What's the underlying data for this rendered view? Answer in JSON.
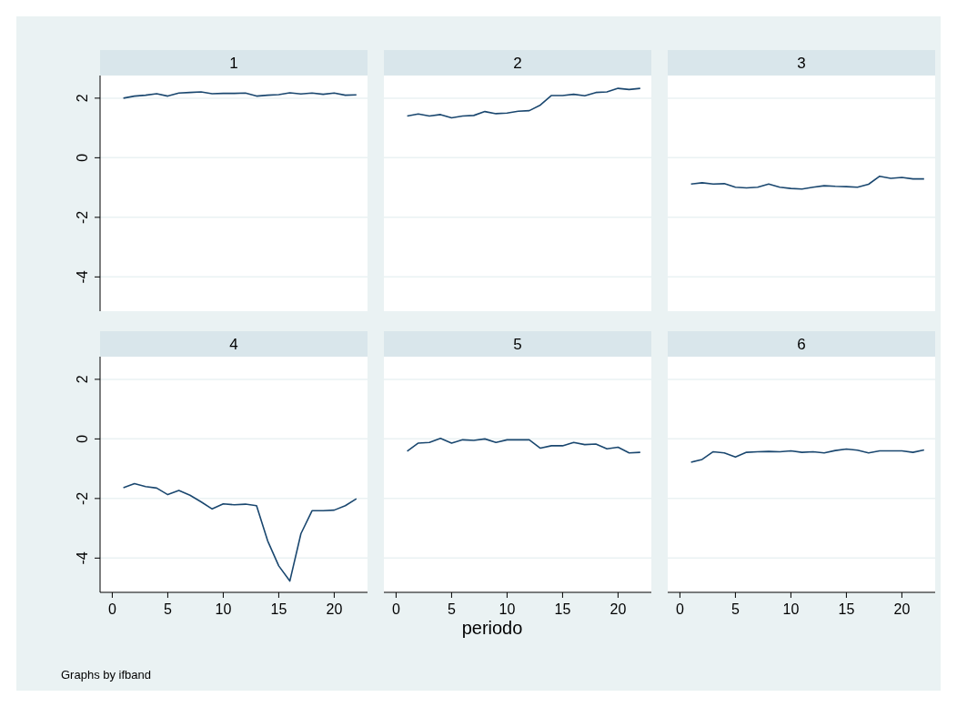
{
  "chart_data": [
    {
      "type": "line",
      "title": "1",
      "x": [
        1,
        2,
        3,
        4,
        5,
        6,
        7,
        8,
        9,
        10,
        11,
        12,
        13,
        14,
        15,
        16,
        17,
        18,
        19,
        20,
        21,
        22
      ],
      "series": [
        {
          "color": "#1a476f",
          "values": [
            2.0,
            2.07,
            2.1,
            2.15,
            2.07,
            2.17,
            2.19,
            2.21,
            2.15,
            2.16,
            2.16,
            2.17,
            2.07,
            2.1,
            2.12,
            2.18,
            2.14,
            2.17,
            2.13,
            2.17,
            2.1,
            2.11
          ]
        }
      ],
      "xlim": [
        -1.1,
        23
      ],
      "xticks": [
        0,
        5,
        10,
        15,
        20
      ],
      "ylim": [
        -5.15,
        2.76
      ],
      "yticks": [
        -4,
        -2,
        0,
        2
      ],
      "grid": "y",
      "tick_labels": "y"
    },
    {
      "type": "line",
      "title": "2",
      "x": [
        1,
        2,
        3,
        4,
        5,
        6,
        7,
        8,
        9,
        10,
        11,
        12,
        13,
        14,
        15,
        16,
        17,
        18,
        19,
        20,
        21,
        22
      ],
      "series": [
        {
          "color": "#1a476f",
          "values": [
            1.4,
            1.47,
            1.4,
            1.45,
            1.34,
            1.4,
            1.42,
            1.55,
            1.48,
            1.5,
            1.56,
            1.58,
            1.77,
            2.09,
            2.09,
            2.13,
            2.08,
            2.19,
            2.21,
            2.33,
            2.29,
            2.33
          ]
        }
      ],
      "xlim": [
        -1.1,
        23
      ],
      "xticks": [
        0,
        5,
        10,
        15,
        20
      ],
      "ylim": [
        -5.15,
        2.76
      ],
      "yticks": [
        -4,
        -2,
        0,
        2
      ],
      "grid": "y",
      "tick_labels": false
    },
    {
      "type": "line",
      "title": "3",
      "x": [
        1,
        2,
        3,
        4,
        5,
        6,
        7,
        8,
        9,
        10,
        11,
        12,
        13,
        14,
        15,
        16,
        17,
        18,
        19,
        20,
        21,
        22
      ],
      "series": [
        {
          "color": "#1a476f",
          "values": [
            -0.88,
            -0.84,
            -0.88,
            -0.87,
            -0.99,
            -1.01,
            -0.99,
            -0.88,
            -0.99,
            -1.03,
            -1.05,
            -0.99,
            -0.94,
            -0.96,
            -0.97,
            -0.99,
            -0.89,
            -0.62,
            -0.69,
            -0.66,
            -0.71,
            -0.71
          ]
        }
      ],
      "xlim": [
        -1.1,
        23
      ],
      "xticks": [
        0,
        5,
        10,
        15,
        20
      ],
      "ylim": [
        -5.15,
        2.76
      ],
      "yticks": [
        -4,
        -2,
        0,
        2
      ],
      "grid": "y",
      "tick_labels": false
    },
    {
      "type": "line",
      "title": "4",
      "x": [
        1,
        2,
        3,
        4,
        5,
        6,
        7,
        8,
        9,
        10,
        11,
        12,
        13,
        14,
        15,
        16,
        17,
        18,
        19,
        20,
        21,
        22
      ],
      "series": [
        {
          "color": "#1a476f",
          "values": [
            -1.64,
            -1.5,
            -1.6,
            -1.65,
            -1.87,
            -1.73,
            -1.89,
            -2.11,
            -2.35,
            -2.18,
            -2.21,
            -2.19,
            -2.24,
            -3.42,
            -4.26,
            -4.77,
            -3.18,
            -2.41,
            -2.41,
            -2.39,
            -2.24,
            -2.01
          ]
        }
      ],
      "xlim": [
        -1.1,
        23
      ],
      "xticks": [
        0,
        5,
        10,
        15,
        20
      ],
      "ylim": [
        -5.15,
        2.76
      ],
      "yticks": [
        -4,
        -2,
        0,
        2
      ],
      "grid": "y",
      "annotations": [
        "Graphs by ifband"
      ]
    },
    {
      "type": "line",
      "title": "5",
      "xlabel": "periodo",
      "x": [
        1,
        2,
        3,
        4,
        5,
        6,
        7,
        8,
        9,
        10,
        11,
        12,
        13,
        14,
        15,
        16,
        17,
        18,
        19,
        20,
        21,
        22
      ],
      "series": [
        {
          "color": "#1a476f",
          "values": [
            -0.41,
            -0.14,
            -0.12,
            0.02,
            -0.14,
            -0.03,
            -0.05,
            0,
            -0.12,
            -0.03,
            -0.03,
            -0.03,
            -0.31,
            -0.23,
            -0.23,
            -0.12,
            -0.19,
            -0.17,
            -0.33,
            -0.28,
            -0.47,
            -0.45
          ]
        }
      ],
      "xlim": [
        -1.1,
        23
      ],
      "xticks": [
        0,
        5,
        10,
        15,
        20
      ],
      "ylim": [
        -5.15,
        2.76
      ],
      "yticks": [
        -4,
        -2,
        0,
        2
      ],
      "grid": "y",
      "tick_labels": "x"
    },
    {
      "type": "line",
      "title": "6",
      "x": [
        1,
        2,
        3,
        4,
        5,
        6,
        7,
        8,
        9,
        10,
        11,
        12,
        13,
        14,
        15,
        16,
        17,
        18,
        19,
        20,
        21,
        22
      ],
      "series": [
        {
          "color": "#1a476f",
          "values": [
            -0.78,
            -0.69,
            -0.43,
            -0.47,
            -0.61,
            -0.45,
            -0.43,
            -0.42,
            -0.43,
            -0.4,
            -0.45,
            -0.43,
            -0.47,
            -0.39,
            -0.34,
            -0.38,
            -0.47,
            -0.4,
            -0.4,
            -0.4,
            -0.45,
            -0.37
          ]
        }
      ],
      "xlim": [
        -1.1,
        23
      ],
      "xticks": [
        0,
        5,
        10,
        15,
        20
      ],
      "ylim": [
        -5.15,
        2.76
      ],
      "yticks": [
        -4,
        -2,
        0,
        2
      ],
      "grid": "y",
      "tick_labels": "x"
    }
  ]
}
